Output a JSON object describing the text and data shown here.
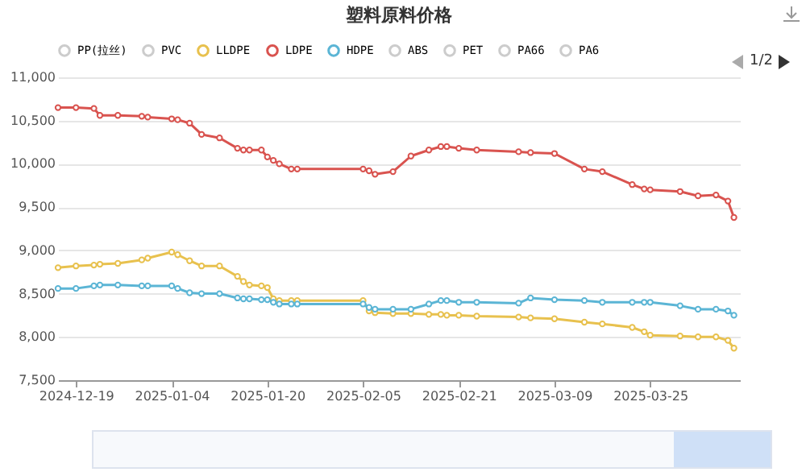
{
  "chart_data": {
    "type": "line",
    "title": "塑料原料价格",
    "x": [
      "2024-12-16",
      "2024-12-19",
      "2024-12-22",
      "2024-12-23",
      "2024-12-26",
      "2024-12-30",
      "2024-12-31",
      "2025-01-04",
      "2025-01-05",
      "2025-01-07",
      "2025-01-09",
      "2025-01-12",
      "2025-01-15",
      "2025-01-16",
      "2025-01-17",
      "2025-01-19",
      "2025-01-20",
      "2025-01-21",
      "2025-01-22",
      "2025-01-24",
      "2025-01-25",
      "2025-02-05",
      "2025-02-06",
      "2025-02-07",
      "2025-02-10",
      "2025-02-13",
      "2025-02-16",
      "2025-02-18",
      "2025-02-19",
      "2025-02-21",
      "2025-02-24",
      "2025-03-03",
      "2025-03-05",
      "2025-03-09",
      "2025-03-14",
      "2025-03-17",
      "2025-03-22",
      "2025-03-24",
      "2025-03-25",
      "2025-03-30",
      "2025-04-02",
      "2025-04-05",
      "2025-04-07",
      "2025-04-08"
    ],
    "series": [
      {
        "name": "PP(拉丝)",
        "color": "#cccccc",
        "values": [
          null,
          null,
          null,
          null,
          null,
          null,
          null,
          null,
          null,
          null,
          null,
          null,
          null,
          null,
          null,
          null,
          null,
          null,
          null,
          null,
          null,
          null,
          null,
          null,
          null,
          null,
          null,
          null,
          null,
          null,
          null,
          null,
          null,
          null,
          null,
          null,
          null,
          null,
          null,
          null,
          null,
          null,
          null,
          null
        ]
      },
      {
        "name": "PVC",
        "color": "#cccccc",
        "values": [
          null,
          null,
          null,
          null,
          null,
          null,
          null,
          null,
          null,
          null,
          null,
          null,
          null,
          null,
          null,
          null,
          null,
          null,
          null,
          null,
          null,
          null,
          null,
          null,
          null,
          null,
          null,
          null,
          null,
          null,
          null,
          null,
          null,
          null,
          null,
          null,
          null,
          null,
          null,
          null,
          null,
          null,
          null,
          null
        ]
      },
      {
        "name": "LLDPE",
        "color": "#e8c14e",
        "values": [
          8800,
          8820,
          8830,
          8840,
          8850,
          8890,
          8910,
          8980,
          8950,
          8880,
          8820,
          8820,
          8700,
          8640,
          8600,
          8590,
          8570,
          8440,
          8420,
          8420,
          8420,
          8420,
          8300,
          8280,
          8270,
          8270,
          8260,
          8260,
          8250,
          8250,
          8240,
          8230,
          8220,
          8210,
          8170,
          8150,
          8110,
          8060,
          8020,
          8010,
          8000,
          8000,
          7960,
          7870
        ]
      },
      {
        "name": "LDPE",
        "color": "#d9534f",
        "values": [
          10650,
          10650,
          10640,
          10560,
          10560,
          10550,
          10540,
          10520,
          10510,
          10470,
          10340,
          10300,
          10180,
          10160,
          10160,
          10160,
          10080,
          10040,
          10000,
          9940,
          9940,
          9940,
          9920,
          9880,
          9910,
          10090,
          10160,
          10200,
          10200,
          10180,
          10160,
          10140,
          10130,
          10120,
          9940,
          9910,
          9760,
          9710,
          9700,
          9680,
          9630,
          9640,
          9570,
          9380
        ]
      },
      {
        "name": "HDPE",
        "color": "#5bb5d5",
        "values": [
          8560,
          8560,
          8590,
          8600,
          8600,
          8590,
          8590,
          8590,
          8560,
          8510,
          8500,
          8500,
          8450,
          8440,
          8440,
          8430,
          8430,
          8400,
          8380,
          8380,
          8380,
          8380,
          8340,
          8320,
          8320,
          8320,
          8380,
          8420,
          8420,
          8400,
          8400,
          8390,
          8450,
          8430,
          8420,
          8400,
          8400,
          8400,
          8400,
          8360,
          8320,
          8320,
          8300,
          8250
        ]
      },
      {
        "name": "ABS",
        "color": "#cccccc",
        "values": [
          null,
          null,
          null,
          null,
          null,
          null,
          null,
          null,
          null,
          null,
          null,
          null,
          null,
          null,
          null,
          null,
          null,
          null,
          null,
          null,
          null,
          null,
          null,
          null,
          null,
          null,
          null,
          null,
          null,
          null,
          null,
          null,
          null,
          null,
          null,
          null,
          null,
          null,
          null,
          null,
          null,
          null,
          null,
          null
        ]
      },
      {
        "name": "PET",
        "color": "#cccccc",
        "values": [
          null,
          null,
          null,
          null,
          null,
          null,
          null,
          null,
          null,
          null,
          null,
          null,
          null,
          null,
          null,
          null,
          null,
          null,
          null,
          null,
          null,
          null,
          null,
          null,
          null,
          null,
          null,
          null,
          null,
          null,
          null,
          null,
          null,
          null,
          null,
          null,
          null,
          null,
          null,
          null,
          null,
          null,
          null,
          null
        ]
      },
      {
        "name": "PA66",
        "color": "#cccccc",
        "values": [
          null,
          null,
          null,
          null,
          null,
          null,
          null,
          null,
          null,
          null,
          null,
          null,
          null,
          null,
          null,
          null,
          null,
          null,
          null,
          null,
          null,
          null,
          null,
          null,
          null,
          null,
          null,
          null,
          null,
          null,
          null,
          null,
          null,
          null,
          null,
          null,
          null,
          null,
          null,
          null,
          null,
          null,
          null,
          null
        ]
      },
      {
        "name": "PA6",
        "color": "#cccccc",
        "values": [
          null,
          null,
          null,
          null,
          null,
          null,
          null,
          null,
          null,
          null,
          null,
          null,
          null,
          null,
          null,
          null,
          null,
          null,
          null,
          null,
          null,
          null,
          null,
          null,
          null,
          null,
          null,
          null,
          null,
          null,
          null,
          null,
          null,
          null,
          null,
          null,
          null,
          null,
          null,
          null,
          null,
          null,
          null,
          null
        ]
      }
    ],
    "xlim": [
      "2024-12-16",
      "2025-04-09"
    ],
    "xticks": [
      "2024-12-19",
      "2025-01-04",
      "2025-01-20",
      "2025-02-05",
      "2025-02-21",
      "2025-03-09",
      "2025-03-25"
    ],
    "ylim": [
      7500,
      11000
    ],
    "yticks": [
      {
        "value": 7500,
        "label": "7,500"
      },
      {
        "value": 8000,
        "label": "8,000"
      },
      {
        "value": 8500,
        "label": "8,500"
      },
      {
        "value": 9000,
        "label": "9,000"
      },
      {
        "value": 9500,
        "label": "9,500"
      },
      {
        "value": 10000,
        "label": "10,000"
      },
      {
        "value": 10500,
        "label": "10,500"
      },
      {
        "value": 11000,
        "label": "11,000"
      }
    ],
    "grid": "y",
    "legend": "top",
    "marker": "circle",
    "line_style": "solid",
    "annotations": [
      "1/2"
    ]
  }
}
